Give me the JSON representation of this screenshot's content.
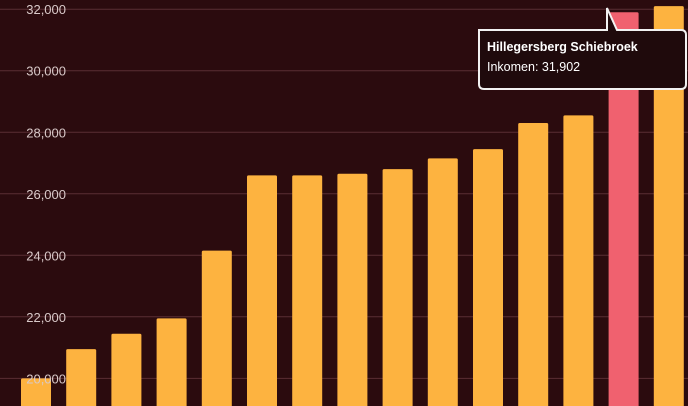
{
  "chart_data": {
    "type": "bar",
    "title": "",
    "xlabel": "",
    "ylabel": "",
    "ylim": [
      19100,
      32300
    ],
    "y_ticks": [
      20000,
      22000,
      24000,
      26000,
      28000,
      30000,
      32000
    ],
    "y_tick_labels": [
      "20,000",
      "22,000",
      "24,000",
      "26,000",
      "28,000",
      "30,000",
      "32,000"
    ],
    "grid": true,
    "values": [
      20000,
      20950,
      21450,
      21950,
      24150,
      26600,
      26600,
      26650,
      26800,
      27150,
      27450,
      28300,
      28550,
      31902,
      32100
    ],
    "highlight_index": 13,
    "colors": {
      "bar": "#fdb340",
      "highlight": "#f0616f",
      "background": "#2b0b0e",
      "grid": "#5a2e33",
      "tooltip_bg": "#1f0a0c"
    },
    "tooltip": {
      "title": "Hillegersberg Schiebroek",
      "label": "Inkomen",
      "value": "31,902"
    }
  }
}
